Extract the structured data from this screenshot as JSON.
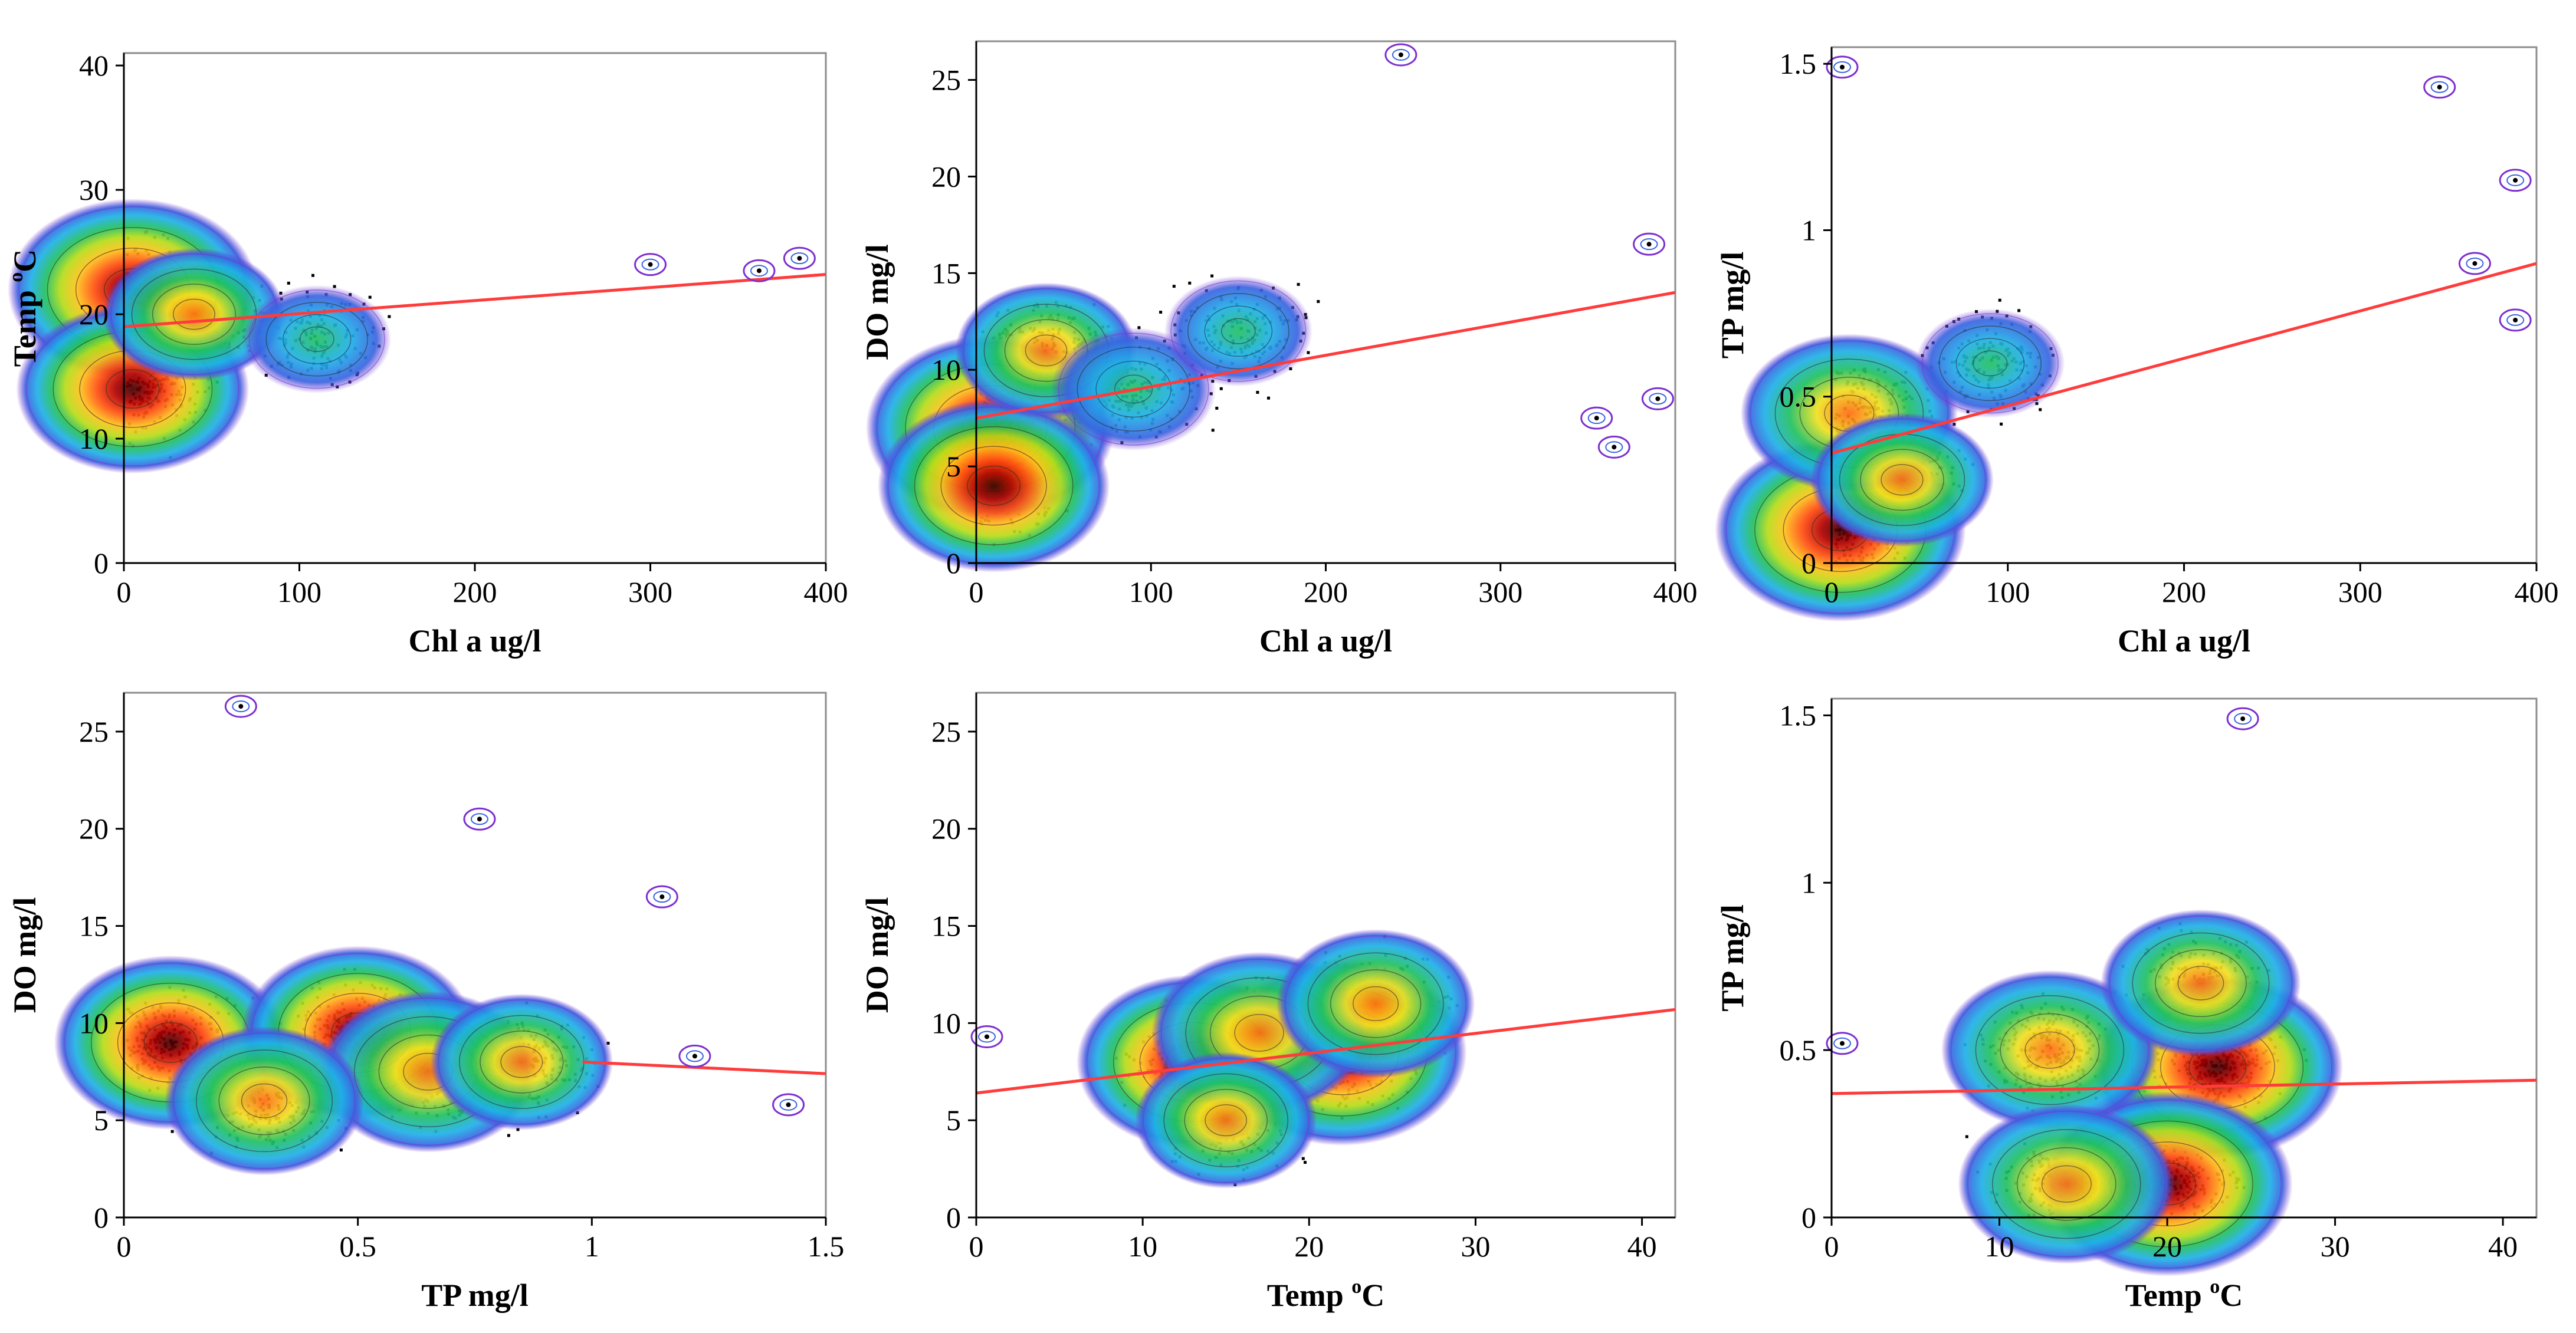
{
  "colors": {
    "trend": "#ff3b3b",
    "points": "#000000",
    "frame": "#8c8c8c",
    "density_scale": [
      "#7d2fd0",
      "#3a63e0",
      "#1fb0e8",
      "#20c060",
      "#9ad21a",
      "#f0e020",
      "#ff8c1a",
      "#e82020",
      "#5a0000"
    ]
  },
  "chart_data": [
    {
      "id": "p1",
      "type": "scatter",
      "xlabel": "Chl a ug/l",
      "ylabel_main": "Temp ",
      "ylabel_sup": "o",
      "ylabel_end": "C",
      "xlim": [
        0,
        400
      ],
      "ylim": [
        0,
        41
      ],
      "xticks": [
        "0",
        "100",
        "200",
        "300",
        "400"
      ],
      "yticks": [
        "0",
        "10",
        "20",
        "30",
        "40"
      ],
      "xtick_values": [
        0,
        100,
        200,
        300,
        400
      ],
      "ytick_values": [
        0,
        10,
        20,
        30,
        40
      ],
      "trend": {
        "x": [
          0,
          400
        ],
        "y": [
          19.0,
          23.2
        ]
      },
      "density_peaks": [
        {
          "x": 5,
          "y": 22,
          "level": 9
        },
        {
          "x": 5,
          "y": 14,
          "level": 8
        },
        {
          "x": 40,
          "y": 20,
          "level": 5
        },
        {
          "x": 110,
          "y": 18,
          "level": 3
        }
      ],
      "outliers": [
        {
          "x": 300,
          "y": 24
        },
        {
          "x": 362,
          "y": 23.5
        },
        {
          "x": 385,
          "y": 24.5
        }
      ]
    },
    {
      "id": "p2",
      "type": "scatter",
      "xlabel": "Chl a ug/l",
      "ylabel_main": "DO mg/l",
      "ylabel_sup": "",
      "ylabel_end": "",
      "xlim": [
        0,
        400
      ],
      "ylim": [
        0,
        27
      ],
      "xticks": [
        "0",
        "100",
        "200",
        "300",
        "400"
      ],
      "yticks": [
        "0",
        "5",
        "10",
        "15",
        "20",
        "25"
      ],
      "xtick_values": [
        0,
        100,
        200,
        300,
        400
      ],
      "ytick_values": [
        0,
        5,
        10,
        15,
        20,
        25
      ],
      "trend": {
        "x": [
          0,
          400
        ],
        "y": [
          7.5,
          14.0
        ]
      },
      "density_peaks": [
        {
          "x": 8,
          "y": 7,
          "level": 9
        },
        {
          "x": 10,
          "y": 4,
          "level": 8
        },
        {
          "x": 40,
          "y": 11,
          "level": 5
        },
        {
          "x": 90,
          "y": 9,
          "level": 4
        },
        {
          "x": 150,
          "y": 12,
          "level": 3
        }
      ],
      "outliers": [
        {
          "x": 243,
          "y": 26.3
        },
        {
          "x": 355,
          "y": 7.5
        },
        {
          "x": 365,
          "y": 6
        },
        {
          "x": 390,
          "y": 8.5
        },
        {
          "x": 385,
          "y": 16.5
        }
      ]
    },
    {
      "id": "p3",
      "type": "scatter",
      "xlabel": "Chl a ug/l",
      "ylabel_main": "TP mg/l",
      "ylabel_sup": "",
      "ylabel_end": "",
      "xlim": [
        0,
        400
      ],
      "ylim": [
        0,
        1.55
      ],
      "xticks": [
        "0",
        "100",
        "200",
        "300",
        "400"
      ],
      "yticks": [
        "0",
        "0.5",
        "1",
        "1.5"
      ],
      "xtick_values": [
        0,
        100,
        200,
        300,
        400
      ],
      "ytick_values": [
        0,
        0.5,
        1,
        1.5
      ],
      "trend": {
        "x": [
          0,
          400
        ],
        "y": [
          0.33,
          0.9
        ]
      },
      "density_peaks": [
        {
          "x": 5,
          "y": 0.1,
          "level": 9
        },
        {
          "x": 10,
          "y": 0.45,
          "level": 7
        },
        {
          "x": 40,
          "y": 0.25,
          "level": 5
        },
        {
          "x": 90,
          "y": 0.6,
          "level": 3
        }
      ],
      "outliers": [
        {
          "x": 2,
          "y": 1.49
        },
        {
          "x": 345,
          "y": 1.43
        },
        {
          "x": 388,
          "y": 1.15
        },
        {
          "x": 365,
          "y": 0.9
        },
        {
          "x": 388,
          "y": 0.73
        }
      ]
    },
    {
      "id": "p4",
      "type": "scatter",
      "xlabel": "TP mg/l",
      "ylabel_main": "DO mg/l",
      "ylabel_sup": "",
      "ylabel_end": "",
      "xlim": [
        0,
        1.5
      ],
      "ylim": [
        0,
        27
      ],
      "xticks": [
        "0",
        "0.5",
        "1",
        "1.5"
      ],
      "yticks": [
        "0",
        "5",
        "10",
        "15",
        "20",
        "25"
      ],
      "xtick_values": [
        0,
        0.5,
        1,
        1.5
      ],
      "ytick_values": [
        0,
        5,
        10,
        15,
        20,
        25
      ],
      "trend": {
        "x": [
          0.98,
          1.5
        ],
        "y": [
          8.0,
          7.4
        ]
      },
      "density_peaks": [
        {
          "x": 0.1,
          "y": 9,
          "level": 8
        },
        {
          "x": 0.5,
          "y": 9.5,
          "level": 8
        },
        {
          "x": 0.65,
          "y": 7.5,
          "level": 7
        },
        {
          "x": 0.3,
          "y": 6,
          "level": 6
        },
        {
          "x": 0.85,
          "y": 8,
          "level": 5
        }
      ],
      "outliers": [
        {
          "x": 0.25,
          "y": 26.3
        },
        {
          "x": 0.76,
          "y": 20.5
        },
        {
          "x": 1.15,
          "y": 16.5
        },
        {
          "x": 1.42,
          "y": 5.8
        },
        {
          "x": 1.22,
          "y": 8.3
        }
      ]
    },
    {
      "id": "p5",
      "type": "scatter",
      "xlabel_main": "Temp ",
      "xlabel_sup": "o",
      "xlabel_end": "C",
      "ylabel_main": "DO mg/l",
      "ylabel_sup": "",
      "ylabel_end": "",
      "xlim": [
        0,
        42
      ],
      "ylim": [
        0,
        27
      ],
      "xticks": [
        "0",
        "10",
        "20",
        "30",
        "40"
      ],
      "yticks": [
        "0",
        "5",
        "10",
        "15",
        "20",
        "25"
      ],
      "xtick_values": [
        0,
        10,
        20,
        30,
        40
      ],
      "ytick_values": [
        0,
        5,
        10,
        15,
        20,
        25
      ],
      "trend": {
        "x": [
          0,
          42
        ],
        "y": [
          6.4,
          10.7
        ]
      },
      "density_peaks": [
        {
          "x": 22,
          "y": 8.5,
          "level": 9
        },
        {
          "x": 13,
          "y": 8,
          "level": 8
        },
        {
          "x": 17,
          "y": 9.5,
          "level": 7
        },
        {
          "x": 24,
          "y": 11,
          "level": 6
        },
        {
          "x": 15,
          "y": 5,
          "level": 5
        }
      ],
      "outliers": [
        {
          "x": 0,
          "y": 9.3
        }
      ]
    },
    {
      "id": "p6",
      "type": "scatter",
      "xlabel_main": "Temp ",
      "xlabel_sup": "o",
      "xlabel_end": "C",
      "ylabel_main": "TP mg/l",
      "ylabel_sup": "",
      "ylabel_end": "",
      "xlim": [
        0,
        42
      ],
      "ylim": [
        0,
        1.55
      ],
      "xticks": [
        "0",
        "10",
        "20",
        "30",
        "40"
      ],
      "yticks": [
        "0",
        "0.5",
        "1",
        "1.5"
      ],
      "xtick_values": [
        0,
        10,
        20,
        30,
        40
      ],
      "ytick_values": [
        0,
        0.5,
        1,
        1.5
      ],
      "trend": {
        "x": [
          0,
          42
        ],
        "y": [
          0.37,
          0.41
        ]
      },
      "density_peaks": [
        {
          "x": 23,
          "y": 0.45,
          "level": 9
        },
        {
          "x": 20,
          "y": 0.1,
          "level": 9
        },
        {
          "x": 13,
          "y": 0.5,
          "level": 7
        },
        {
          "x": 22,
          "y": 0.7,
          "level": 6
        },
        {
          "x": 14,
          "y": 0.1,
          "level": 7
        }
      ],
      "outliers": [
        {
          "x": 0,
          "y": 0.52
        },
        {
          "x": 24.5,
          "y": 1.49
        }
      ]
    }
  ]
}
